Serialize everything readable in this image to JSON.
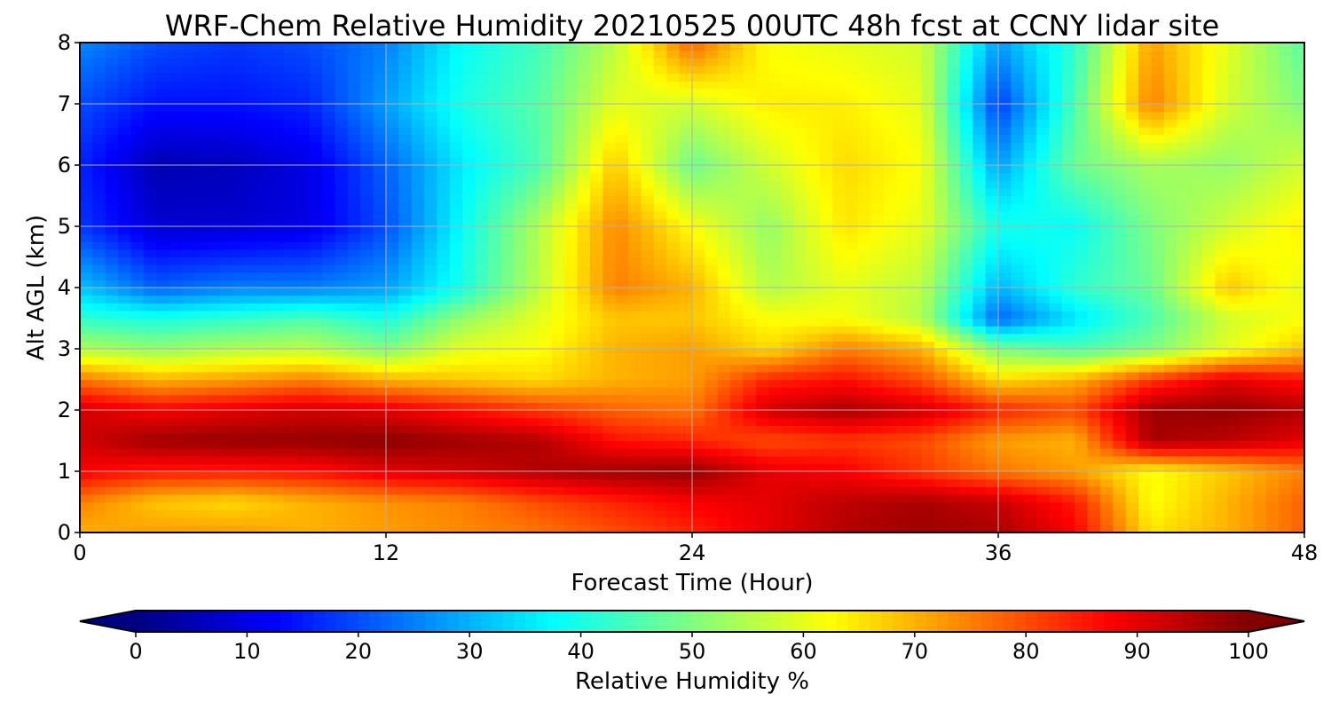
{
  "chart_data": {
    "type": "heatmap",
    "title": "WRF-Chem Relative Humidity 20210525 00UTC 48h fcst at CCNY lidar site",
    "xlabel": "Forecast Time (Hour)",
    "ylabel": "Alt AGL (km)",
    "xlim": [
      0,
      48
    ],
    "ylim": [
      0,
      8
    ],
    "x_ticks": [
      0,
      12,
      24,
      36,
      48
    ],
    "y_ticks": [
      0,
      1,
      2,
      3,
      4,
      5,
      6,
      7,
      8
    ],
    "grid": true,
    "colormap": "jet",
    "colorbar": {
      "label": "Relative Humidity %",
      "orientation": "horizontal",
      "position": "bottom",
      "ticks": [
        0,
        10,
        20,
        30,
        40,
        50,
        60,
        70,
        80,
        90,
        100
      ],
      "range": [
        0,
        100
      ],
      "extend": "both"
    },
    "x": [
      0,
      3,
      6,
      9,
      12,
      15,
      18,
      21,
      24,
      27,
      30,
      33,
      36,
      39,
      42,
      45,
      48
    ],
    "y": [
      0,
      0.5,
      1,
      1.5,
      2,
      2.5,
      3,
      3.5,
      4,
      5,
      6,
      7,
      8
    ],
    "z": [
      [
        70,
        72,
        72,
        70,
        72,
        74,
        76,
        80,
        84,
        90,
        95,
        97,
        96,
        88,
        65,
        70,
        78
      ],
      [
        75,
        68,
        66,
        70,
        73,
        75,
        80,
        84,
        88,
        90,
        94,
        96,
        93,
        85,
        62,
        70,
        78
      ],
      [
        88,
        85,
        85,
        86,
        90,
        92,
        95,
        97,
        98,
        90,
        88,
        82,
        76,
        72,
        62,
        68,
        75
      ],
      [
        92,
        97,
        98,
        98,
        99,
        97,
        95,
        86,
        84,
        80,
        82,
        80,
        72,
        70,
        96,
        94,
        90
      ],
      [
        92,
        88,
        90,
        92,
        90,
        86,
        82,
        78,
        76,
        92,
        96,
        92,
        84,
        80,
        97,
        98,
        95
      ],
      [
        76,
        70,
        72,
        75,
        70,
        68,
        66,
        70,
        72,
        84,
        86,
        80,
        66,
        70,
        82,
        90,
        86
      ],
      [
        55,
        52,
        55,
        56,
        50,
        60,
        62,
        70,
        72,
        66,
        75,
        70,
        50,
        45,
        50,
        60,
        68
      ],
      [
        42,
        40,
        42,
        45,
        40,
        52,
        60,
        68,
        68,
        62,
        62,
        55,
        22,
        35,
        45,
        58,
        62
      ],
      [
        32,
        22,
        25,
        25,
        28,
        40,
        56,
        75,
        70,
        55,
        60,
        56,
        30,
        42,
        48,
        68,
        60
      ],
      [
        18,
        8,
        8,
        10,
        20,
        38,
        55,
        74,
        62,
        52,
        65,
        60,
        40,
        38,
        50,
        58,
        64
      ],
      [
        16,
        5,
        6,
        10,
        22,
        36,
        45,
        68,
        48,
        58,
        66,
        62,
        28,
        48,
        54,
        52,
        58
      ],
      [
        20,
        14,
        14,
        16,
        28,
        40,
        46,
        60,
        58,
        64,
        64,
        60,
        18,
        45,
        75,
        58,
        50
      ],
      [
        26,
        20,
        18,
        20,
        25,
        38,
        44,
        56,
        78,
        62,
        60,
        58,
        28,
        42,
        72,
        60,
        46
      ]
    ]
  }
}
